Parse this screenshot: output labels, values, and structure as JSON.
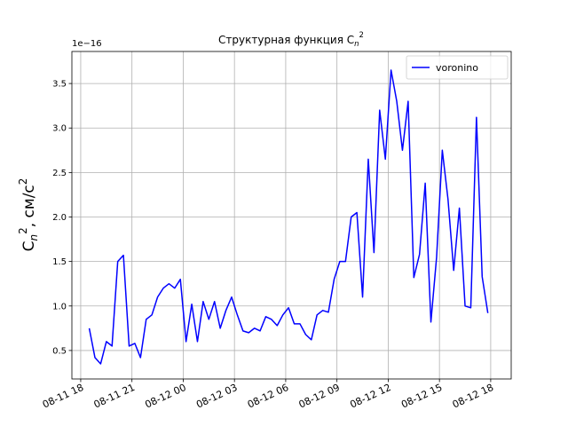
{
  "chart_data": {
    "type": "line",
    "title": {
      "text": "Структурная функция C",
      "sub": "n",
      "sup": "2"
    },
    "y_label": {
      "text": "C",
      "sub": "n",
      "sup": "2",
      "unit": ", см/с",
      "unit_sup": "2"
    },
    "y_offset_label": "1e−16",
    "x": [
      "08-11 18:30",
      "08-11 18:50",
      "08-11 19:10",
      "08-11 19:30",
      "08-11 19:50",
      "08-11 20:10",
      "08-11 20:30",
      "08-11 20:50",
      "08-11 21:10",
      "08-11 21:30",
      "08-11 21:50",
      "08-11 22:10",
      "08-11 22:30",
      "08-11 22:50",
      "08-11 23:10",
      "08-11 23:30",
      "08-11 23:50",
      "08-12 00:10",
      "08-12 00:30",
      "08-12 00:50",
      "08-12 01:10",
      "08-12 01:30",
      "08-12 01:50",
      "08-12 02:10",
      "08-12 02:30",
      "08-12 02:50",
      "08-12 03:10",
      "08-12 03:30",
      "08-12 03:50",
      "08-12 04:10",
      "08-12 04:30",
      "08-12 04:50",
      "08-12 05:10",
      "08-12 05:30",
      "08-12 05:50",
      "08-12 06:10",
      "08-12 06:30",
      "08-12 06:50",
      "08-12 07:10",
      "08-12 07:30",
      "08-12 07:50",
      "08-12 08:10",
      "08-12 08:30",
      "08-12 08:50",
      "08-12 09:10",
      "08-12 09:30",
      "08-12 09:50",
      "08-12 10:10",
      "08-12 10:30",
      "08-12 10:50",
      "08-12 11:10",
      "08-12 11:30",
      "08-12 11:50",
      "08-12 12:10",
      "08-12 12:30",
      "08-12 12:50",
      "08-12 13:10",
      "08-12 13:30",
      "08-12 13:50",
      "08-12 14:10",
      "08-12 14:30",
      "08-12 14:50",
      "08-12 15:10",
      "08-12 15:30",
      "08-12 15:50",
      "08-12 16:10",
      "08-12 16:30",
      "08-12 16:50",
      "08-12 17:10",
      "08-12 17:30",
      "08-12 17:50"
    ],
    "series": [
      {
        "name": "voronino",
        "color": "#0000ff",
        "values": [
          0.75,
          0.42,
          0.35,
          0.6,
          0.55,
          1.5,
          1.57,
          0.55,
          0.58,
          0.42,
          0.85,
          0.9,
          1.1,
          1.2,
          1.25,
          1.2,
          1.3,
          0.6,
          1.02,
          0.6,
          1.05,
          0.85,
          1.05,
          0.75,
          0.95,
          1.1,
          0.9,
          0.72,
          0.7,
          0.75,
          0.72,
          0.88,
          0.85,
          0.78,
          0.9,
          0.98,
          0.8,
          0.8,
          0.68,
          0.62,
          0.9,
          0.95,
          0.93,
          1.3,
          1.5,
          1.5,
          2.0,
          2.05,
          1.1,
          2.65,
          1.6,
          3.2,
          2.65,
          3.65,
          3.3,
          2.75,
          3.3,
          1.32,
          1.58,
          2.38,
          0.82,
          1.55,
          2.75,
          2.2,
          1.4,
          2.1,
          1.0,
          0.98,
          3.12,
          1.33,
          0.92
        ]
      }
    ],
    "xlim": [
      "08-11 17:29",
      "08-12 19:12"
    ],
    "xticks": [
      {
        "value": "08-11 18:00",
        "label": "08-11 18"
      },
      {
        "value": "08-11 21:00",
        "label": "08-11 21"
      },
      {
        "value": "08-12 00:00",
        "label": "08-12 00"
      },
      {
        "value": "08-12 03:00",
        "label": "08-12 03"
      },
      {
        "value": "08-12 06:00",
        "label": "08-12 06"
      },
      {
        "value": "08-12 09:00",
        "label": "08-12 09"
      },
      {
        "value": "08-12 12:00",
        "label": "08-12 12"
      },
      {
        "value": "08-12 15:00",
        "label": "08-12 15"
      },
      {
        "value": "08-12 18:00",
        "label": "08-12 18"
      }
    ],
    "ylim": [
      0.18,
      3.86
    ],
    "yticks": [
      0.5,
      {
        "value": 1,
        "label": "1.0"
      },
      1.5,
      {
        "value": 2,
        "label": "2.0"
      },
      2.5,
      {
        "value": 3,
        "label": "3.0"
      },
      3.5
    ],
    "grid": true,
    "legend": "upper right"
  }
}
